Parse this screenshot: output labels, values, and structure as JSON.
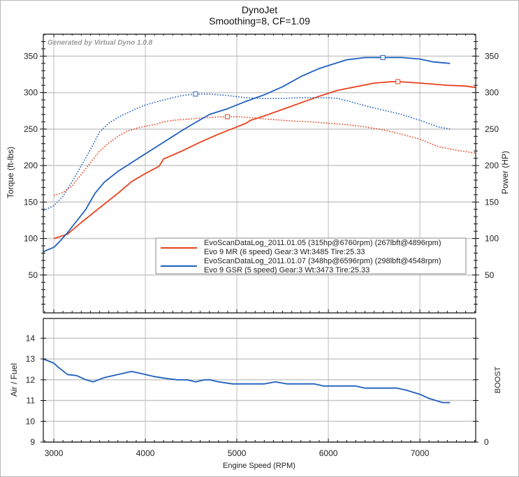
{
  "header": {
    "title": "DynoJet",
    "subtitle": "Smoothing=8, CF=1.09",
    "watermark": "Generated by Virtual Dyno 1.0.8"
  },
  "chart_data": [
    {
      "type": "line",
      "name": "torque-power",
      "xlabel": "",
      "ylabel": "Torque (ft-lbs)",
      "y2label": "Power (HP)",
      "xlim": [
        2885,
        7610
      ],
      "ylim": [
        0,
        380
      ],
      "y2lim": [
        0,
        380
      ],
      "grid": true,
      "xticks": [
        3000,
        4000,
        5000,
        6000,
        7000
      ],
      "yticks": [
        50,
        100,
        150,
        200,
        250,
        300,
        350
      ],
      "ytick_labels": [
        "50",
        "100",
        "150",
        "200",
        "250",
        "300",
        "350"
      ],
      "legend_position": "center-right",
      "legend": [
        {
          "line1": "EvoScanDataLog_2011.01.05 (315hp@6760rpm) (267lbft@4896rpm)",
          "line2": "Evo 9 MR (6 speed) Gear:3 Wt:3485 Tire:25.33",
          "color": "#e8401c"
        },
        {
          "line1": "EvoScanDataLog_2011.01.07 (348hp@6596rpm) (298lbft@4548rpm)",
          "line2": "Evo 9 GSR (5 speed) Gear:3 Wt:3473 Tire:25.33",
          "color": "#1f5fbf"
        }
      ],
      "series": [
        {
          "name": "Evo 9 MR Power",
          "color": "#e8401c",
          "style": "solid",
          "x": [
            3000,
            3150,
            3300,
            3500,
            3700,
            3850,
            4000,
            4150,
            4200,
            4400,
            4600,
            4800,
            5000,
            5100,
            5150,
            5300,
            5500,
            5700,
            5900,
            6100,
            6300,
            6500,
            6700,
            6760,
            6900,
            7100,
            7300,
            7500,
            7610
          ],
          "y": [
            100,
            106,
            122,
            142,
            162,
            178,
            189,
            199,
            209,
            220,
            232,
            243,
            253,
            258,
            262,
            268,
            277,
            286,
            295,
            303,
            308,
            313,
            315,
            315,
            314,
            312,
            310,
            309,
            307
          ]
        },
        {
          "name": "Evo 9 MR Torque",
          "color": "#e8401c",
          "style": "dotted",
          "x": [
            3000,
            3100,
            3200,
            3300,
            3400,
            3500,
            3600,
            3700,
            3800,
            3900,
            4000,
            4100,
            4200,
            4300,
            4500,
            4700,
            4896,
            5000,
            5200,
            5400,
            5600,
            5800,
            6000,
            6200,
            6400,
            6600,
            6800,
            7000,
            7200,
            7400,
            7610
          ],
          "y": [
            159,
            163,
            172,
            188,
            204,
            220,
            231,
            240,
            247,
            251,
            254,
            256,
            260,
            262,
            264,
            266,
            267,
            267,
            265,
            263,
            261,
            260,
            258,
            256,
            253,
            249,
            243,
            236,
            226,
            221,
            217
          ]
        },
        {
          "name": "Evo 9 GSR Power",
          "color": "#1f5fbf",
          "style": "solid",
          "x": [
            2885,
            3000,
            3050,
            3150,
            3250,
            3350,
            3450,
            3550,
            3700,
            3850,
            4000,
            4200,
            4400,
            4548,
            4700,
            4900,
            5100,
            5300,
            5500,
            5700,
            5900,
            6000,
            6200,
            6400,
            6596,
            6800,
            7000,
            7150,
            7330
          ],
          "y": [
            82,
            88,
            94,
            108,
            124,
            140,
            162,
            177,
            192,
            204,
            216,
            232,
            248,
            259,
            270,
            278,
            288,
            297,
            308,
            322,
            333,
            337,
            345,
            348,
            348,
            348,
            346,
            342,
            340
          ]
        },
        {
          "name": "Evo 9 GSR Torque",
          "color": "#1f5fbf",
          "style": "dotted",
          "x": [
            2885,
            3000,
            3100,
            3200,
            3300,
            3400,
            3500,
            3600,
            3700,
            3800,
            3900,
            4000,
            4200,
            4400,
            4548,
            4700,
            4900,
            5100,
            5300,
            5500,
            5700,
            5900,
            6000,
            6100,
            6200,
            6400,
            6600,
            6800,
            7000,
            7200,
            7330
          ],
          "y": [
            138,
            145,
            158,
            178,
            200,
            222,
            246,
            258,
            266,
            272,
            278,
            283,
            290,
            296,
            298,
            298,
            296,
            293,
            292,
            292,
            293,
            293,
            293,
            292,
            289,
            282,
            276,
            270,
            262,
            253,
            250
          ]
        }
      ],
      "markers": [
        {
          "series": "Evo 9 MR Power",
          "x": 6760,
          "y": 315
        },
        {
          "series": "Evo 9 MR Torque",
          "x": 4896,
          "y": 267
        },
        {
          "series": "Evo 9 GSR Power",
          "x": 6596,
          "y": 348
        },
        {
          "series": "Evo 9 GSR Torque",
          "x": 4548,
          "y": 298
        }
      ]
    },
    {
      "type": "line",
      "name": "air-fuel",
      "xlabel": "Engine Speed (RPM)",
      "ylabel": "Air / Fuel",
      "y2label": "BOOST",
      "xlim": [
        2885,
        7610
      ],
      "ylim": [
        9,
        14.95
      ],
      "grid": true,
      "xticks": [
        3000,
        4000,
        5000,
        6000,
        7000
      ],
      "xtick_labels": [
        "3000",
        "4000",
        "5000",
        "6000",
        "7000"
      ],
      "yticks": [
        9,
        10,
        11,
        12,
        13,
        14
      ],
      "ytick_labels": [
        "9",
        "10",
        "11",
        "12",
        "13",
        "14"
      ],
      "y2ticks": [
        0
      ],
      "y2tick_labels": [
        "0"
      ],
      "series": [
        {
          "name": "Evo 9 GSR AFR",
          "color": "#1f5fbf",
          "style": "solid",
          "x": [
            2885,
            3000,
            3050,
            3150,
            3250,
            3350,
            3430,
            3550,
            3700,
            3850,
            3950,
            4100,
            4250,
            4350,
            4450,
            4550,
            4650,
            4700,
            4800,
            4950,
            5050,
            5200,
            5300,
            5420,
            5550,
            5700,
            5850,
            5950,
            6100,
            6300,
            6400,
            6550,
            6750,
            6850,
            7000,
            7100,
            7250,
            7330
          ],
          "y": [
            13.0,
            12.8,
            12.6,
            12.25,
            12.2,
            12.0,
            11.9,
            12.1,
            12.25,
            12.4,
            12.3,
            12.15,
            12.05,
            12.0,
            12.0,
            11.9,
            12.0,
            12.0,
            11.9,
            11.8,
            11.8,
            11.8,
            11.8,
            11.9,
            11.8,
            11.8,
            11.8,
            11.7,
            11.7,
            11.7,
            11.6,
            11.6,
            11.6,
            11.5,
            11.3,
            11.1,
            10.9,
            10.9
          ]
        }
      ]
    }
  ]
}
